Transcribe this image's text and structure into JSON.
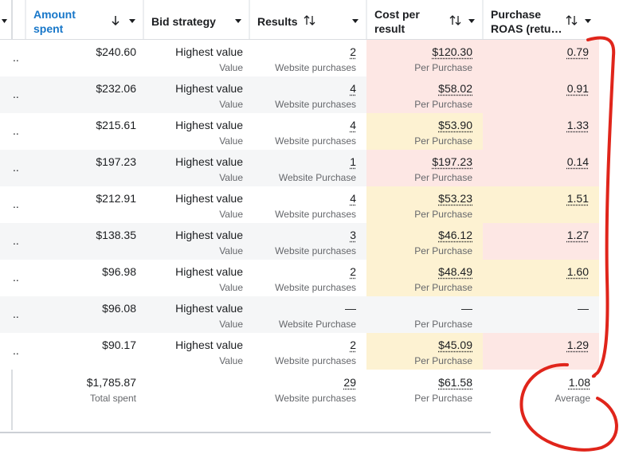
{
  "header": {
    "lead": "",
    "columns": [
      "Amount spent",
      "Bid strategy",
      "Results",
      "Cost per result",
      "Purchase ROAS (retu…"
    ]
  },
  "rows": [
    {
      "lead": "..",
      "amount": "$240.60",
      "bid": "Highest value",
      "bid_sub": "Value",
      "results": "2",
      "results_sub": "Website purchases",
      "cost": "$120.30",
      "cost_sub": "Per Purchase",
      "roas": "0.79",
      "cost_color": "#fde7e4",
      "roas_color": "#fde7e4"
    },
    {
      "lead": "..",
      "amount": "$232.06",
      "bid": "Highest value",
      "bid_sub": "Value",
      "results": "4",
      "results_sub": "Website purchases",
      "cost": "$58.02",
      "cost_sub": "Per Purchase",
      "roas": "0.91",
      "cost_color": "#fde7e4",
      "roas_color": "#fde7e4"
    },
    {
      "lead": "..",
      "amount": "$215.61",
      "bid": "Highest value",
      "bid_sub": "Value",
      "results": "4",
      "results_sub": "Website purchases",
      "cost": "$53.90",
      "cost_sub": "Per Purchase",
      "roas": "1.33",
      "cost_color": "#fdf2d2",
      "roas_color": "#fde7e4"
    },
    {
      "lead": "..",
      "amount": "$197.23",
      "bid": "Highest value",
      "bid_sub": "Value",
      "results": "1",
      "results_sub": "Website Purchase",
      "cost": "$197.23",
      "cost_sub": "Per Purchase",
      "roas": "0.14",
      "cost_color": "#fde7e4",
      "roas_color": "#fde7e4"
    },
    {
      "lead": "..",
      "amount": "$212.91",
      "bid": "Highest value",
      "bid_sub": "Value",
      "results": "4",
      "results_sub": "Website purchases",
      "cost": "$53.23",
      "cost_sub": "Per Purchase",
      "roas": "1.51",
      "cost_color": "#fdf2d2",
      "roas_color": "#fdf2d2"
    },
    {
      "lead": "..",
      "amount": "$138.35",
      "bid": "Highest value",
      "bid_sub": "Value",
      "results": "3",
      "results_sub": "Website purchases",
      "cost": "$46.12",
      "cost_sub": "Per Purchase",
      "roas": "1.27",
      "cost_color": "#fdf2d2",
      "roas_color": "#fde7e4"
    },
    {
      "lead": "..",
      "amount": "$96.98",
      "bid": "Highest value",
      "bid_sub": "Value",
      "results": "2",
      "results_sub": "Website purchases",
      "cost": "$48.49",
      "cost_sub": "Per Purchase",
      "roas": "1.60",
      "cost_color": "#fdf2d2",
      "roas_color": "#fdf2d2"
    },
    {
      "lead": "..",
      "amount": "$96.08",
      "bid": "Highest value",
      "bid_sub": "Value",
      "results": "—",
      "results_sub": "Website Purchase",
      "cost": "—",
      "cost_sub": "Per Purchase",
      "roas": "—"
    },
    {
      "lead": "..",
      "amount": "$90.17",
      "bid": "Highest value",
      "bid_sub": "Value",
      "results": "2",
      "results_sub": "Website purchases",
      "cost": "$45.09",
      "cost_sub": "Per Purchase",
      "roas": "1.29",
      "cost_color": "#fdf2d2",
      "roas_color": "#fde7e4"
    }
  ],
  "footer": {
    "amount": "$1,785.87",
    "amount_sub": "Total spent",
    "results": "29",
    "results_sub": "Website purchases",
    "cost": "$61.58",
    "cost_sub": "Per Purchase",
    "roas": "1.08",
    "roas_sub": "Average"
  }
}
